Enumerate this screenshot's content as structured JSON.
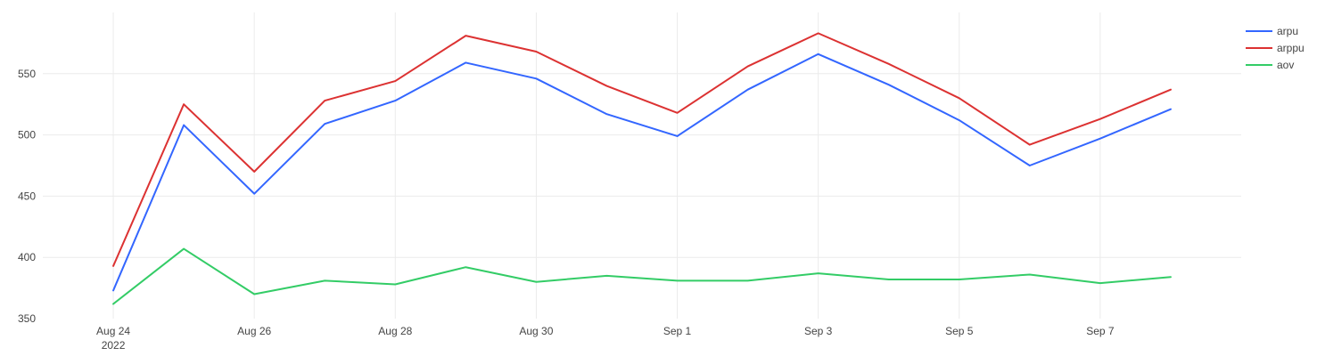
{
  "chart_data": {
    "type": "line",
    "title": "",
    "xlabel": "",
    "ylabel": "",
    "x": [
      "2022-08-24",
      "2022-08-25",
      "2022-08-26",
      "2022-08-27",
      "2022-08-28",
      "2022-08-29",
      "2022-08-30",
      "2022-08-31",
      "2022-09-01",
      "2022-09-02",
      "2022-09-03",
      "2022-09-04",
      "2022-09-05",
      "2022-09-06",
      "2022-09-07",
      "2022-09-08"
    ],
    "x_ticks": [
      {
        "date": "2022-08-24",
        "label": "Aug 24",
        "sublabel": "2022"
      },
      {
        "date": "2022-08-26",
        "label": "Aug 26"
      },
      {
        "date": "2022-08-28",
        "label": "Aug 28"
      },
      {
        "date": "2022-08-30",
        "label": "Aug 30"
      },
      {
        "date": "2022-09-01",
        "label": "Sep 1"
      },
      {
        "date": "2022-09-03",
        "label": "Sep 3"
      },
      {
        "date": "2022-09-05",
        "label": "Sep 5"
      },
      {
        "date": "2022-09-07",
        "label": "Sep 7"
      }
    ],
    "xlim": [
      "2022-08-23",
      "2022-09-09"
    ],
    "y_ticks": [
      350,
      400,
      450,
      500,
      550
    ],
    "ylim": [
      350,
      600
    ],
    "grid": true,
    "legend_position": "top-right",
    "series": [
      {
        "name": "arpu",
        "color": "#3366ff",
        "values": [
          373,
          508,
          452,
          509,
          528,
          559,
          546,
          517,
          499,
          537,
          566,
          541,
          512,
          475,
          497,
          521
        ]
      },
      {
        "name": "arppu",
        "color": "#dc3232",
        "values": [
          393,
          525,
          470,
          528,
          544,
          581,
          568,
          540,
          518,
          556,
          583,
          558,
          530,
          492,
          513,
          537
        ]
      },
      {
        "name": "aov",
        "color": "#33cc66",
        "values": [
          362,
          407,
          370,
          381,
          378,
          392,
          380,
          385,
          381,
          381,
          387,
          382,
          382,
          386,
          379,
          384
        ]
      }
    ]
  }
}
